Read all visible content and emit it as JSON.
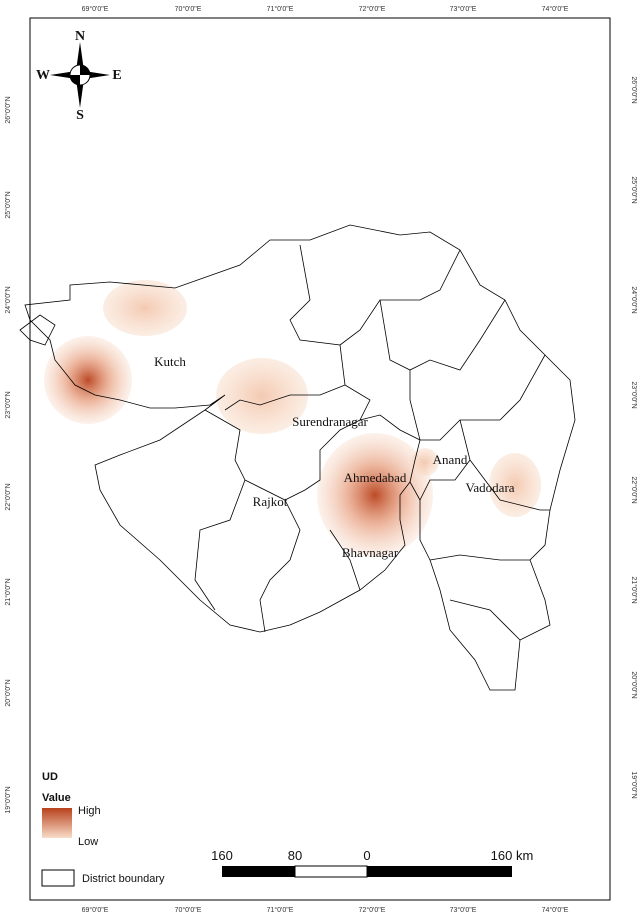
{
  "graticule": {
    "longitudes": [
      "69°0'0\"E",
      "70°0'0\"E",
      "71°0'0\"E",
      "72°0'0\"E",
      "73°0'0\"E",
      "74°0'0\"E"
    ],
    "latitudes": [
      "26°0'0\"N",
      "25°0'0\"N",
      "24°0'0\"N",
      "23°0'0\"N",
      "22°0'0\"N",
      "21°0'0\"N",
      "20°0'0\"N",
      "19°0'0\"N"
    ]
  },
  "compass": {
    "north": "N",
    "south": "S",
    "east": "E",
    "west": "W"
  },
  "places": [
    "Kutch",
    "Surendranagar",
    "Rajkot",
    "Ahmedabad",
    "Anand",
    "Vadodara",
    "Bhavnagar"
  ],
  "legend": {
    "title": "UD",
    "subtitle": "Value",
    "high": "High",
    "low": "Low",
    "boundary": "District boundary"
  },
  "scale_bar": {
    "labels": [
      "160",
      "80",
      "0",
      "160 km"
    ]
  }
}
